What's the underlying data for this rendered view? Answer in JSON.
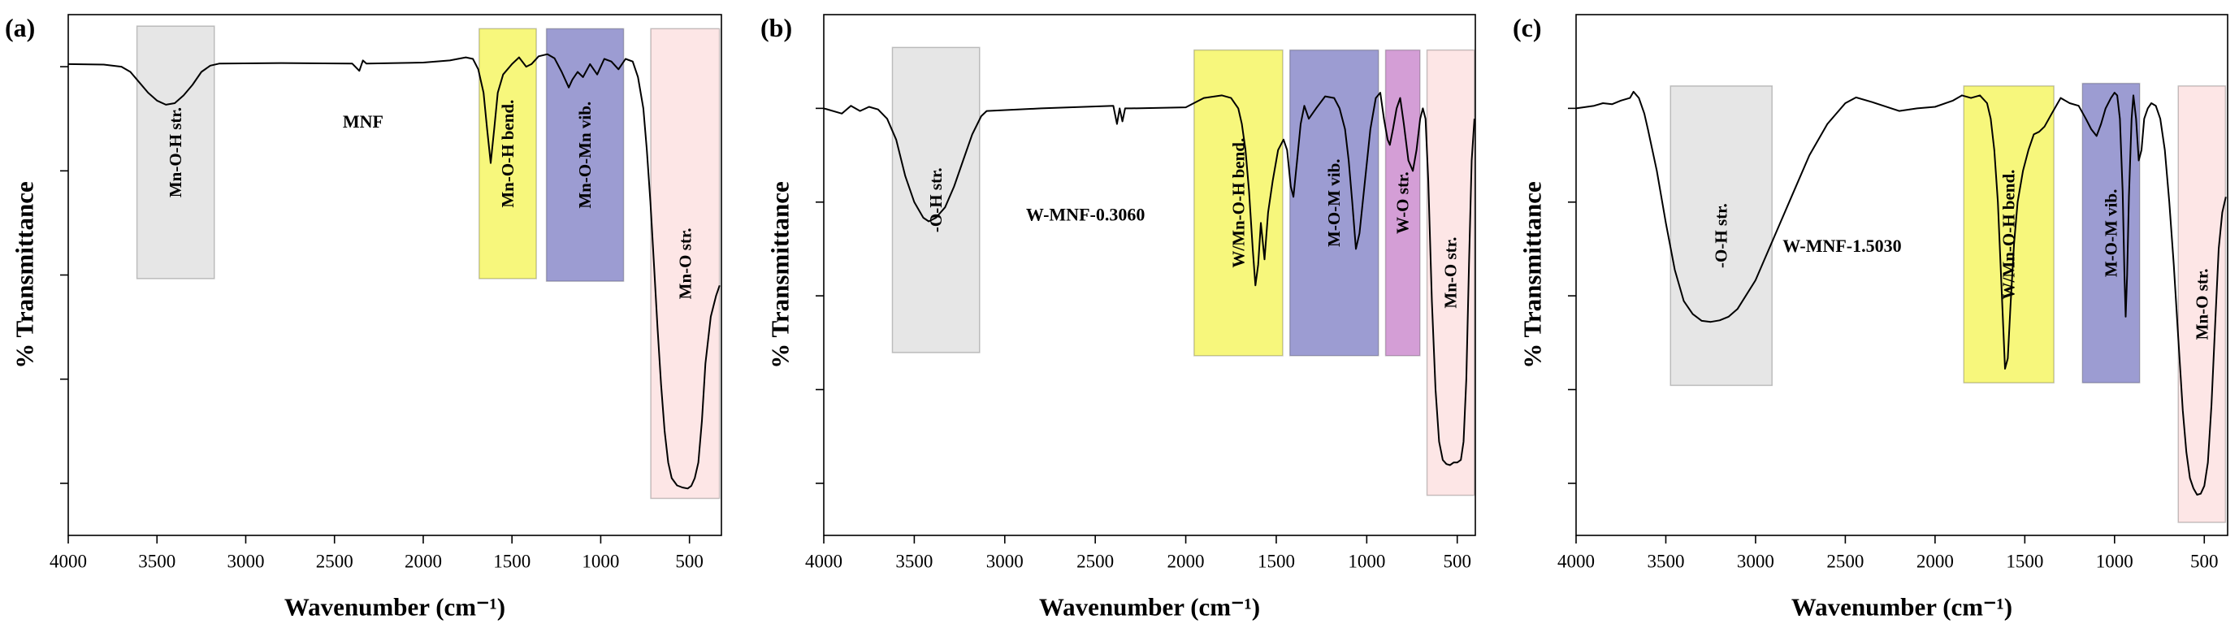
{
  "chart_data": [
    {
      "type": "line",
      "panel_label": "(a)",
      "annotation": "MNF",
      "annotation_at": [
        2339,
        79.5
      ],
      "x_label": "Wavenumber (cm⁻¹)",
      "y_label": "% Transmittance",
      "xlim": [
        4000,
        320
      ],
      "xticks": [
        4000,
        3500,
        3000,
        2500,
        2000,
        1500,
        1000,
        500
      ],
      "ylim": [
        0,
        100
      ],
      "yticks": [
        10,
        30,
        50,
        70,
        90
      ],
      "color": "#000000",
      "bands": [
        {
          "label": "Mn-O-H str.",
          "color": "#e6e6e6",
          "x": [
            3613,
            3177
          ],
          "y": [
            49.3,
            97.8
          ]
        },
        {
          "label": "Mn-O-H bend.",
          "color": "#f7f77c",
          "x": [
            1685,
            1363
          ],
          "y": [
            49.3,
            97.3
          ]
        },
        {
          "label": "Mn-O-Mn vib.",
          "color": "#9c9cd2",
          "x": [
            1306,
            871
          ],
          "y": [
            48.8,
            97.3
          ]
        },
        {
          "label": "Mn-O str.",
          "color": "#fde6e6",
          "x": [
            718,
            331
          ],
          "y": [
            7.1,
            97.3
          ]
        }
      ],
      "x": [
        4000,
        3800,
        3700,
        3650,
        3600,
        3550,
        3500,
        3450,
        3400,
        3350,
        3300,
        3250,
        3200,
        3150,
        2800,
        2400,
        2360,
        2340,
        2320,
        2000,
        1850,
        1760,
        1720,
        1690,
        1660,
        1640,
        1620,
        1600,
        1580,
        1550,
        1500,
        1460,
        1420,
        1390,
        1350,
        1300,
        1260,
        1220,
        1180,
        1160,
        1130,
        1100,
        1060,
        1020,
        980,
        940,
        900,
        860,
        820,
        790,
        760,
        740,
        720,
        700,
        680,
        660,
        640,
        620,
        600,
        570,
        540,
        510,
        490,
        470,
        450,
        430,
        410,
        380,
        350,
        330
      ],
      "values": [
        90.5,
        90.4,
        90,
        89,
        87,
        85,
        83.5,
        82.7,
        83,
        84.5,
        86.5,
        89,
        90.2,
        90.6,
        90.7,
        90.6,
        89.2,
        91.2,
        90.6,
        90.8,
        91.2,
        91.8,
        91.5,
        89.5,
        85,
        78,
        71.5,
        78,
        85,
        88.5,
        90.5,
        91.8,
        90,
        90.5,
        92,
        92.4,
        91.6,
        89,
        86,
        87.5,
        89,
        88,
        90.5,
        88.5,
        91.5,
        91,
        89.5,
        91.5,
        91,
        88,
        82,
        74,
        64,
        52,
        40,
        29,
        20,
        14,
        11,
        9.6,
        9.2,
        9,
        9.5,
        11,
        14,
        22,
        33,
        42,
        46,
        48
      ]
    },
    {
      "type": "line",
      "panel_label": "(b)",
      "annotation": "W-MNF-0.3060",
      "annotation_at": [
        2554,
        61.6
      ],
      "x_label": "Wavenumber (cm⁻¹)",
      "y_label": "% Transmittance",
      "xlim": [
        4000,
        400
      ],
      "xticks": [
        4000,
        3500,
        3000,
        2500,
        2000,
        1500,
        1000,
        500
      ],
      "ylim": [
        0,
        100
      ],
      "yticks": [
        10,
        28,
        46,
        64,
        82
      ],
      "color": "#000000",
      "bands": [
        {
          "label": "-O-H str.",
          "color": "#e6e6e6",
          "x": [
            3621,
            3139
          ],
          "y": [
            35.1,
            93.7
          ]
        },
        {
          "label": "W/Mn-O-H bend.",
          "color": "#f7f77c",
          "x": [
            1954,
            1464
          ],
          "y": [
            34.5,
            93.2
          ]
        },
        {
          "label": "M-O-M vib.",
          "color": "#9c9cd2",
          "x": [
            1425,
            935
          ],
          "y": [
            34.5,
            93.2
          ]
        },
        {
          "label": "W-O str.",
          "color": "#d49ed6",
          "x": [
            896,
            706
          ],
          "y": [
            34.5,
            93.2
          ]
        },
        {
          "label": "Mn-O str.",
          "color": "#fde6e6",
          "x": [
            667,
            406
          ],
          "y": [
            7.7,
            93.2
          ]
        }
      ],
      "x": [
        4000,
        3900,
        3850,
        3800,
        3750,
        3700,
        3650,
        3600,
        3550,
        3500,
        3450,
        3420,
        3380,
        3330,
        3280,
        3230,
        3180,
        3130,
        3100,
        2800,
        2400,
        2380,
        2365,
        2350,
        2335,
        2300,
        2000,
        1900,
        1800,
        1750,
        1710,
        1690,
        1670,
        1650,
        1630,
        1615,
        1600,
        1585,
        1565,
        1545,
        1520,
        1490,
        1460,
        1440,
        1420,
        1405,
        1385,
        1365,
        1345,
        1320,
        1280,
        1230,
        1180,
        1150,
        1120,
        1100,
        1080,
        1060,
        1040,
        1010,
        980,
        950,
        925,
        905,
        885,
        872,
        855,
        835,
        815,
        795,
        770,
        745,
        725,
        705,
        690,
        675,
        660,
        640,
        620,
        600,
        580,
        560,
        540,
        520,
        500,
        480,
        465,
        450,
        435,
        420,
        405
      ],
      "values": [
        82,
        81,
        82.5,
        81.5,
        82.3,
        81.8,
        80,
        76,
        69,
        64,
        61,
        60.3,
        61,
        63,
        67,
        72,
        77,
        80.5,
        81.5,
        82,
        82.5,
        79,
        82,
        79.5,
        82,
        82,
        82.2,
        84,
        84.5,
        84,
        82,
        79,
        74,
        66,
        55,
        48,
        52,
        60,
        53,
        62,
        68,
        74,
        76,
        74,
        67,
        65,
        72,
        79,
        82.5,
        80,
        82,
        84.3,
        84,
        82,
        78,
        72,
        64,
        55,
        58,
        68,
        78,
        84,
        85,
        80,
        76,
        75,
        78,
        82,
        84,
        79,
        72,
        70,
        74,
        80,
        82,
        80,
        68,
        45,
        28,
        18,
        14.5,
        13.7,
        13.5,
        14,
        14,
        14.5,
        18,
        30,
        52,
        72,
        80
      ]
    },
    {
      "type": "line",
      "panel_label": "(c)",
      "annotation": "W-MNF-1.5030",
      "annotation_at": [
        2518,
        55.6
      ],
      "x_label": "Wavenumber (cm⁻¹)",
      "y_label": "% Transmittance",
      "xlim": [
        4000,
        370
      ],
      "xticks": [
        4000,
        3500,
        3000,
        2500,
        2000,
        1500,
        1000,
        500
      ],
      "ylim": [
        0,
        100
      ],
      "yticks": [
        10,
        28,
        46,
        64,
        82
      ],
      "color": "#000000",
      "bands": [
        {
          "label": "-O-H str.",
          "color": "#e6e6e6",
          "x": [
            3474,
            2908
          ],
          "y": [
            28.8,
            86.3
          ]
        },
        {
          "label": "W/Mn-O-H bend.",
          "color": "#f7f77c",
          "x": [
            1840,
            1338
          ],
          "y": [
            29.3,
            86.3
          ]
        },
        {
          "label": "M-O-M vib.",
          "color": "#9c9cd2",
          "x": [
            1179,
            860
          ],
          "y": [
            29.3,
            86.8
          ]
        },
        {
          "label": "Mn-O str.",
          "color": "#fde6e6",
          "x": [
            645,
            382
          ],
          "y": [
            2.5,
            86.3
          ]
        }
      ],
      "x": [
        4000,
        3900,
        3850,
        3800,
        3750,
        3700,
        3680,
        3650,
        3620,
        3600,
        3550,
        3500,
        3450,
        3400,
        3350,
        3300,
        3250,
        3200,
        3150,
        3100,
        3000,
        2900,
        2800,
        2700,
        2600,
        2500,
        2440,
        2350,
        2200,
        2100,
        2000,
        1900,
        1850,
        1800,
        1750,
        1710,
        1690,
        1670,
        1650,
        1635,
        1620,
        1610,
        1595,
        1580,
        1560,
        1540,
        1510,
        1480,
        1450,
        1420,
        1390,
        1350,
        1300,
        1250,
        1200,
        1160,
        1130,
        1100,
        1075,
        1050,
        1020,
        1000,
        985,
        970,
        955,
        945,
        938,
        930,
        920,
        905,
        895,
        880,
        865,
        850,
        835,
        815,
        795,
        770,
        745,
        720,
        695,
        670,
        645,
        620,
        600,
        580,
        560,
        540,
        520,
        500,
        480,
        460,
        440,
        420,
        400,
        380
      ],
      "values": [
        82,
        82.5,
        83,
        82.8,
        83.5,
        84,
        85.2,
        84,
        81,
        78,
        70,
        60,
        51,
        45,
        42.5,
        41.2,
        41,
        41.3,
        42,
        43.5,
        49,
        57,
        65,
        73,
        79,
        83,
        84.1,
        83.2,
        81.5,
        82,
        82.3,
        83.5,
        84.5,
        84,
        84.5,
        83,
        80,
        74,
        64,
        52,
        40,
        32,
        34,
        44,
        56,
        64,
        70,
        74,
        77,
        77.5,
        78.5,
        81,
        84,
        83,
        82.5,
        80,
        78,
        76.7,
        79,
        82,
        84,
        85,
        84.5,
        80,
        66,
        50,
        42,
        50,
        65,
        80,
        84.5,
        80,
        72,
        74,
        80,
        82,
        83,
        82.5,
        80,
        74,
        64,
        52,
        38,
        24,
        16,
        11,
        9,
        7.8,
        8,
        9.5,
        14,
        25,
        40,
        55,
        62,
        65
      ]
    }
  ]
}
